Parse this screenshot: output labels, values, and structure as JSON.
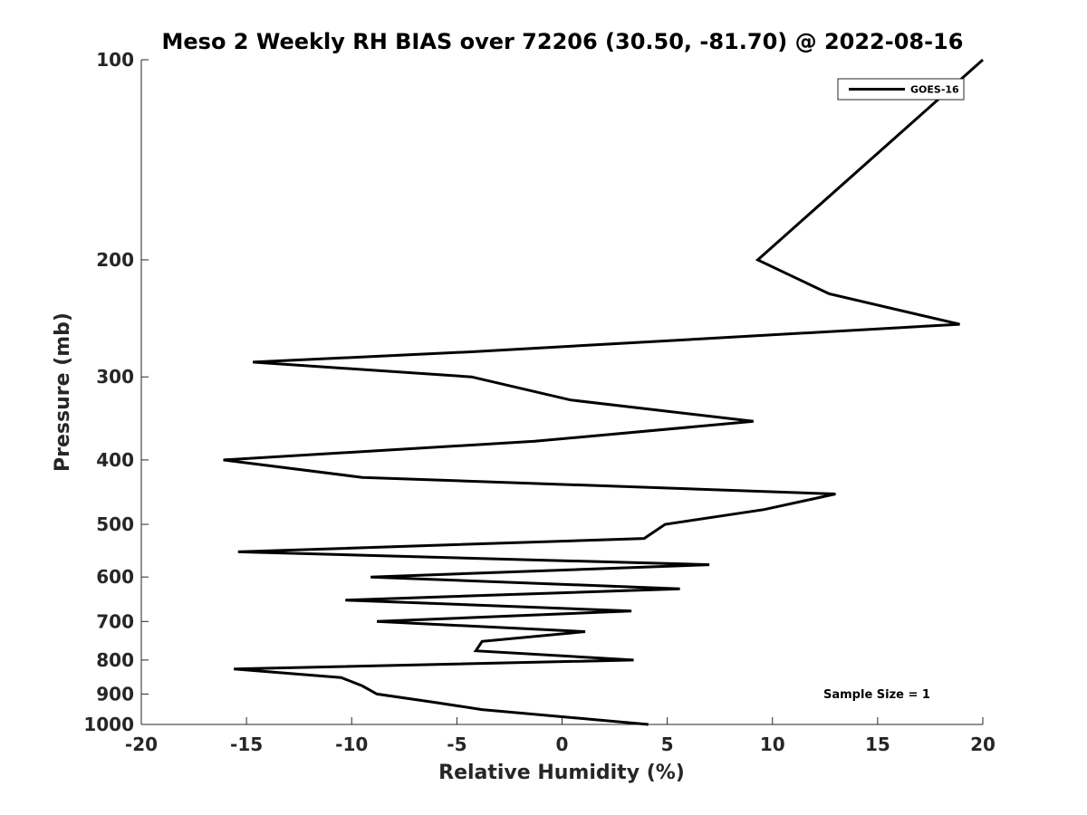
{
  "chart_data": {
    "type": "line",
    "title": "Meso 2 Weekly RH BIAS over 72206 (30.50, -81.70) @ 2022-08-16",
    "xlabel": "Relative Humidity (%)",
    "ylabel": "Pressure (mb)",
    "xlim": [
      -20,
      20
    ],
    "ylim": [
      100,
      1000
    ],
    "y_scale": "log",
    "y_reversed": true,
    "x_ticks": [
      -20,
      -15,
      -10,
      -5,
      0,
      5,
      10,
      15,
      20
    ],
    "y_ticks": [
      100,
      200,
      300,
      400,
      500,
      600,
      700,
      800,
      900,
      1000
    ],
    "grid": false,
    "legend_position": "top-right",
    "annotation": "Sample Size = 1",
    "series": [
      {
        "name": "GOES-16",
        "color": "#000000",
        "x": [
          4.1,
          -3.8,
          -6.2,
          -8.8,
          -9.5,
          -10.5,
          -15.6,
          3.4,
          -4.1,
          -3.8,
          1.1,
          -8.8,
          3.3,
          -10.3,
          5.6,
          -9.1,
          7.0,
          -15.4,
          3.9,
          4.9,
          9.6,
          13.0,
          -9.5,
          -16.1,
          -1.3,
          9.1,
          0.4,
          -4.3,
          -14.7,
          -4.3,
          18.9,
          12.7,
          9.3,
          20.0
        ],
        "y": [
          1000,
          950,
          925,
          900,
          875,
          850,
          825,
          800,
          775,
          750,
          725,
          700,
          675,
          650,
          625,
          600,
          575,
          550,
          525,
          500,
          475,
          450,
          425,
          400,
          375,
          350,
          325,
          300,
          285,
          275,
          250,
          225,
          200,
          100
        ]
      }
    ]
  }
}
